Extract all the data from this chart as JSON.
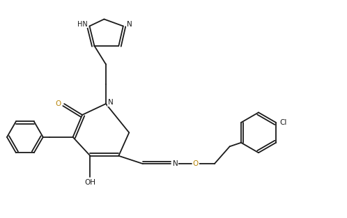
{
  "bg_color": "#ffffff",
  "line_color": "#1a1a1a",
  "o_color": "#b8860b",
  "figsize": [
    4.98,
    3.13
  ],
  "dpi": 100,
  "lw": 1.3,
  "xlim": [
    0,
    10
  ],
  "ylim": [
    0,
    6.26
  ]
}
